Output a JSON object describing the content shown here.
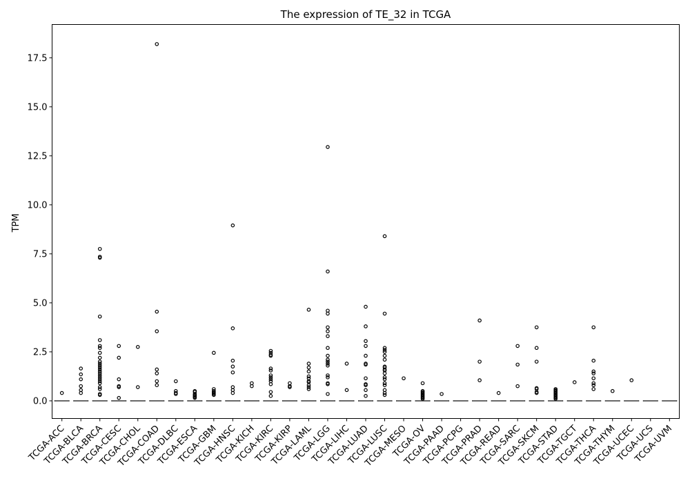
{
  "chart_data": {
    "type": "box",
    "title": "The expression of TE_32 in TCGA",
    "xlabel": "",
    "ylabel": "TPM",
    "ylim": [
      -0.9,
      19.2
    ],
    "yticks": [
      0.0,
      2.5,
      5.0,
      7.5,
      10.0,
      12.5,
      15.0,
      17.5
    ],
    "ytick_labels": [
      "0.0",
      "2.5",
      "5.0",
      "7.5",
      "10.0",
      "12.5",
      "15.0",
      "17.5"
    ],
    "grid": false,
    "categories": [
      "TCGA-ACC",
      "TCGA-BLCA",
      "TCGA-BRCA",
      "TCGA-CESC",
      "TCGA-CHOL",
      "TCGA-COAD",
      "TCGA-DLBC",
      "TCGA-ESCA",
      "TCGA-GBM",
      "TCGA-HNSC",
      "TCGA-KICH",
      "TCGA-KIRC",
      "TCGA-KIRP",
      "TCGA-LAML",
      "TCGA-LGG",
      "TCGA-LIHC",
      "TCGA-LUAD",
      "TCGA-LUSC",
      "TCGA-MESO",
      "TCGA-OV",
      "TCGA-PAAD",
      "TCGA-PCPG",
      "TCGA-PRAD",
      "TCGA-READ",
      "TCGA-SARC",
      "TCGA-SKCM",
      "TCGA-STAD",
      "TCGA-TGCT",
      "TCGA-THCA",
      "TCGA-THYM",
      "TCGA-UCEC",
      "TCGA-UCS",
      "TCGA-UVM"
    ],
    "medians": [
      0,
      0,
      0,
      0,
      0,
      0,
      0,
      0,
      0,
      0,
      0,
      0,
      0,
      0,
      0,
      0,
      0,
      0,
      0,
      0,
      0,
      0,
      0,
      0,
      0,
      0,
      0,
      0,
      0,
      0,
      0,
      0,
      0
    ],
    "outliers": [
      [
        0.4
      ],
      [
        1.65,
        1.35,
        1.1,
        0.75,
        0.55,
        0.4
      ],
      [
        7.75,
        7.35,
        7.3,
        4.3,
        3.1,
        2.8,
        2.7,
        2.45,
        2.2,
        2.0,
        1.9,
        1.8,
        1.7,
        1.6,
        1.5,
        1.4,
        1.3,
        1.2,
        1.1,
        1.0,
        0.9,
        0.7,
        0.6,
        0.35,
        0.3
      ],
      [
        2.8,
        2.2,
        1.1,
        0.75,
        0.7,
        0.15
      ],
      [
        2.75,
        0.7
      ],
      [
        18.2,
        4.55,
        3.55,
        1.6,
        1.4,
        1.0,
        0.8
      ],
      [
        1.0,
        0.5,
        0.4,
        0.35
      ],
      [
        0.5,
        0.45,
        0.35,
        0.3,
        0.25,
        0.2,
        0.15
      ],
      [
        2.45,
        0.6,
        0.5,
        0.45,
        0.4,
        0.35,
        0.3
      ],
      [
        8.95,
        3.7,
        2.05,
        1.75,
        1.45,
        0.7,
        0.55,
        0.4
      ],
      [
        0.9,
        0.75
      ],
      [
        2.55,
        2.45,
        2.35,
        2.3,
        1.65,
        1.55,
        1.3,
        1.2,
        1.1,
        1.0,
        0.85,
        0.45,
        0.25
      ],
      [
        0.9,
        0.75,
        0.7
      ],
      [
        4.65,
        1.9,
        1.7,
        1.5,
        1.25,
        1.15,
        1.0,
        0.95,
        0.8,
        0.7,
        0.6
      ],
      [
        12.95,
        6.6,
        4.6,
        4.45,
        3.75,
        3.55,
        3.3,
        2.7,
        2.3,
        2.1,
        2.0,
        1.9,
        1.8,
        1.3,
        1.2,
        0.9,
        0.85,
        0.35
      ],
      [
        1.9,
        0.55
      ],
      [
        4.8,
        3.8,
        3.05,
        2.8,
        2.3,
        1.9,
        1.85,
        1.15,
        0.85,
        0.8,
        0.55,
        0.25
      ],
      [
        8.4,
        4.45,
        2.7,
        2.6,
        2.5,
        2.3,
        2.1,
        1.75,
        1.7,
        1.6,
        1.55,
        1.4,
        1.2,
        1.1,
        0.9,
        0.8,
        0.55,
        0.4,
        0.3
      ],
      [
        1.15
      ],
      [
        0.9,
        0.5,
        0.45,
        0.4,
        0.35,
        0.3,
        0.25,
        0.2,
        0.15,
        0.1
      ],
      [
        0.35
      ],
      [],
      [
        4.1,
        2.0,
        1.05
      ],
      [
        0.4
      ],
      [
        2.8,
        1.85,
        0.75
      ],
      [
        3.75,
        2.7,
        2.0,
        0.65,
        0.6,
        0.45,
        0.4
      ],
      [
        0.6,
        0.55,
        0.5,
        0.45,
        0.4,
        0.35,
        0.3,
        0.25,
        0.2,
        0.15,
        0.1
      ],
      [
        0.95
      ],
      [
        3.75,
        2.05,
        1.5,
        1.4,
        1.15,
        0.9,
        0.8,
        0.6
      ],
      [
        0.5
      ],
      [
        1.05
      ],
      [],
      []
    ]
  }
}
